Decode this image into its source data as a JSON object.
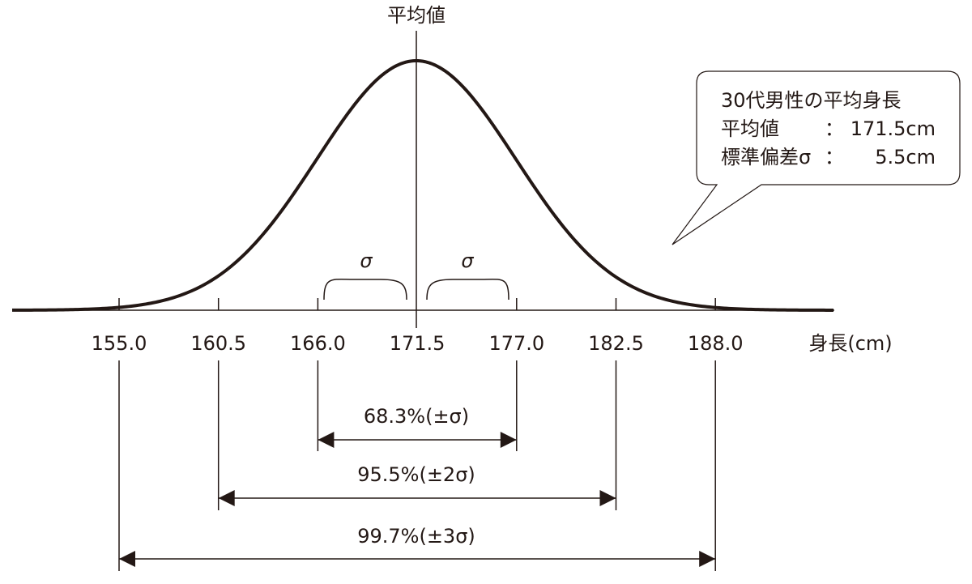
{
  "header": {
    "title": "平均値"
  },
  "axis": {
    "label": "身長(cm)",
    "ticks": [
      "155.0",
      "160.5",
      "166.0",
      "171.5",
      "177.0",
      "182.5",
      "188.0"
    ]
  },
  "sigma_marks": [
    "σ",
    "σ"
  ],
  "ranges": [
    "68.3%(±σ)",
    "95.5%(±2σ)",
    "99.7%(±3σ)"
  ],
  "callout": {
    "title": "30代男性の平均身長",
    "rows": [
      {
        "label": "平均値",
        "sep": "：",
        "value": "171.5cm"
      },
      {
        "label": "標準偏差σ",
        "sep": "：",
        "value": "5.5cm"
      }
    ]
  }
}
